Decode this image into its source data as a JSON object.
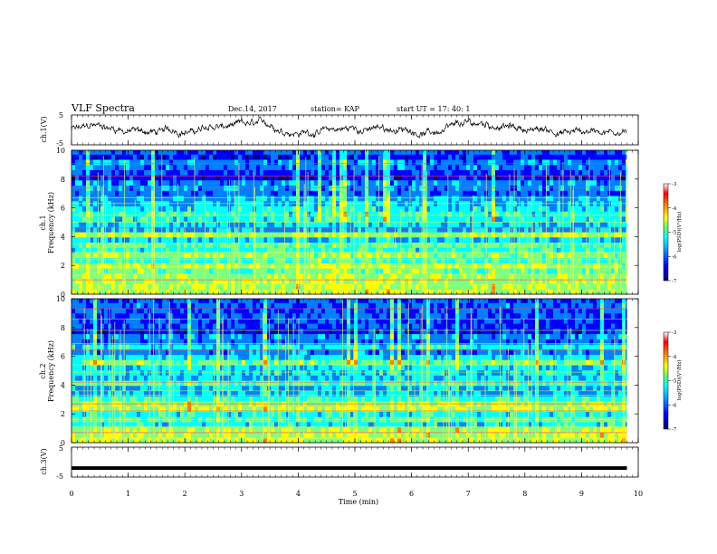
{
  "header": {
    "title": "VLF Spectra",
    "date": "Dec.14, 2017",
    "station": "station= KAP",
    "start_time": "start  UT =   17: 40: 1"
  },
  "chart_data": [
    {
      "type": "line",
      "panel": "ch1-waveform",
      "ylabel": "ch.1(V)",
      "xlim": [
        0,
        10
      ],
      "ylim": [
        -5,
        5
      ],
      "yticks": [
        "5",
        "-5"
      ],
      "x_end": 9.8,
      "series": [
        {
          "values_note": "",
          "trace_color": "#000000"
        }
      ]
    },
    {
      "type": "heatmap",
      "panel": "ch1-spectrogram",
      "ylabel_line1": "ch.1",
      "ylabel_line2": "Frequency (kHz)",
      "xlim": [
        0,
        10
      ],
      "ylim": [
        0,
        10
      ],
      "yticks": [
        "0",
        "2",
        "4",
        "6",
        "8",
        "10"
      ],
      "x_end": 9.8,
      "colorbar": {
        "ticks": [
          "-3",
          "-4",
          "-5",
          "-6",
          "-7"
        ],
        "label": "log(PSD)(V²/Hz)",
        "range": [
          -7,
          -3
        ]
      }
    },
    {
      "type": "heatmap",
      "panel": "ch2-spectrogram",
      "ylabel_line1": "ch.2",
      "ylabel_line2": "Frequency (kHz)",
      "xlim": [
        0,
        10
      ],
      "ylim": [
        0,
        10
      ],
      "yticks": [
        "0",
        "2",
        "4",
        "6",
        "8",
        "10"
      ],
      "x_end": 9.8,
      "colorbar": {
        "ticks": [
          "-3",
          "-4",
          "-5",
          "-6",
          "-7"
        ],
        "label": "log(PSD)(V²/Hz)",
        "range": [
          -7,
          -3
        ]
      }
    },
    {
      "type": "line",
      "panel": "ch3-waveform",
      "ylabel": "ch.3(V)",
      "xlim": [
        0,
        10
      ],
      "ylim": [
        -5,
        5
      ],
      "yticks": [
        "5",
        "-5"
      ],
      "x_end": 9.8,
      "level": -2
    }
  ],
  "xaxis": {
    "label": "Time (min)",
    "ticks": [
      "0",
      "1",
      "2",
      "3",
      "4",
      "5",
      "6",
      "7",
      "8",
      "9",
      "10"
    ]
  },
  "colormap": [
    "#00007f",
    "#0000ff",
    "#007fff",
    "#00ffff",
    "#7fff7f",
    "#ffff00",
    "#ff7f00",
    "#ff0000",
    "#ffffff"
  ]
}
